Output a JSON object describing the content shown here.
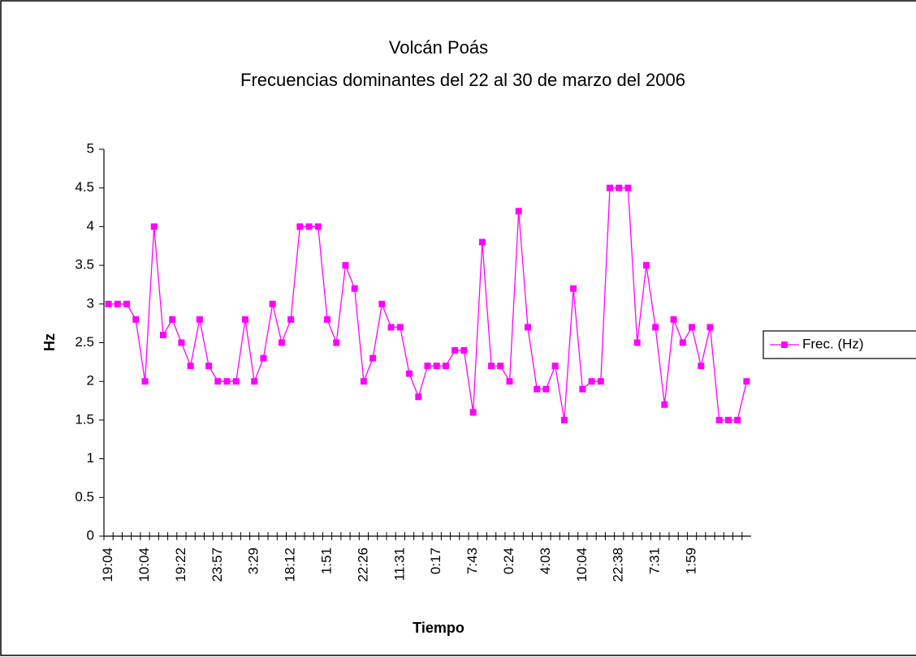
{
  "chart_data": {
    "type": "line",
    "title": "Volcán Poás",
    "subtitle": "Frecuencias dominantes del 22 al 30 de marzo del 2006",
    "x_label": "Tiempo",
    "y_label": "Hz",
    "categories": [
      "19:04",
      null,
      null,
      null,
      "10:04",
      null,
      null,
      null,
      "19:22",
      null,
      null,
      null,
      "23:57",
      null,
      null,
      null,
      "3:29",
      null,
      null,
      null,
      "18:12",
      null,
      null,
      null,
      "1:51",
      null,
      null,
      null,
      "22:26",
      null,
      null,
      null,
      "11:31",
      null,
      null,
      null,
      "0:17",
      null,
      null,
      null,
      "7:43",
      null,
      null,
      null,
      "0:24",
      null,
      null,
      null,
      "4:03",
      null,
      null,
      null,
      "10:04",
      null,
      null,
      null,
      "22:38",
      null,
      null,
      null,
      "7:31",
      null,
      null,
      null,
      "1:59",
      null,
      null,
      null,
      null,
      null,
      null
    ],
    "series": [
      {
        "name": "Frec. (Hz)",
        "color": "#ff00ff",
        "values": [
          3,
          3,
          3,
          2.8,
          2,
          4,
          2.6,
          2.8,
          2.5,
          2.2,
          2.8,
          2.2,
          2,
          2,
          2,
          2.8,
          2,
          2.3,
          3,
          2.5,
          2.8,
          4,
          4,
          4,
          2.8,
          2.5,
          3.5,
          3.2,
          2,
          2.3,
          3,
          2.7,
          2.7,
          2.1,
          1.8,
          2.2,
          2.2,
          2.2,
          2.4,
          2.4,
          1.6,
          3.8,
          2.2,
          2.2,
          2,
          4.2,
          2.7,
          1.9,
          1.9,
          2.2,
          1.5,
          3.2,
          1.9,
          2,
          2,
          4.5,
          4.5,
          4.5,
          2.5,
          3.5,
          2.7,
          1.7,
          2.8,
          2.5,
          2.7,
          2.2,
          2.7,
          1.5,
          1.5,
          1.5,
          2
        ]
      }
    ],
    "ylim": [
      0,
      5
    ],
    "yticks": [
      0,
      0.5,
      1,
      1.5,
      2,
      2.5,
      3,
      3.5,
      4,
      4.5,
      5
    ],
    "grid": false,
    "legend": "right"
  }
}
